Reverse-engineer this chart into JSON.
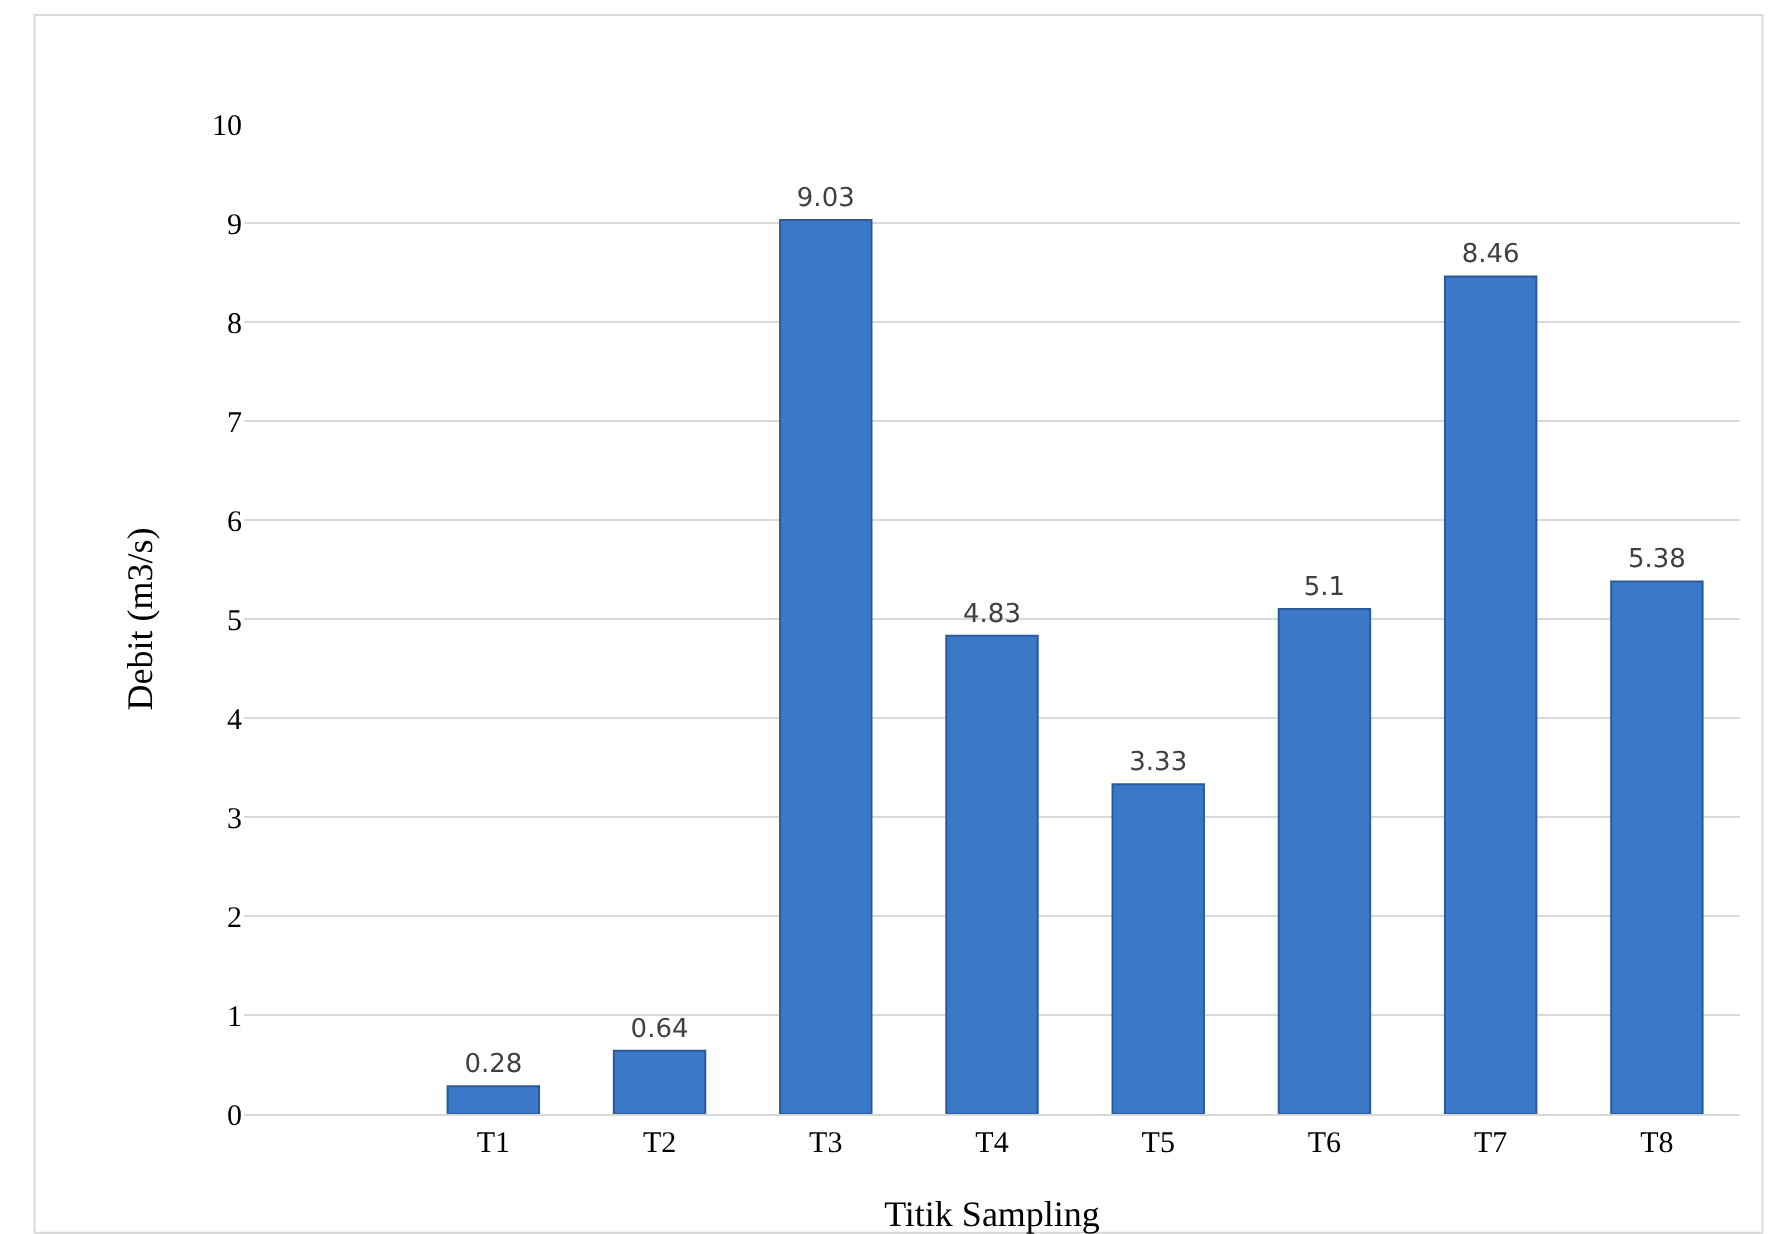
{
  "chart_data": {
    "type": "bar",
    "xlabel": "Titik Sampling",
    "ylabel": "Debit (m3/s)",
    "categories": [
      null,
      "T1",
      "T2",
      "T3",
      "T4",
      "T5",
      "T6",
      "T7",
      "T8"
    ],
    "values": [
      null,
      0.28,
      0.64,
      9.03,
      4.83,
      3.33,
      5.1,
      8.46,
      5.38
    ],
    "color": "#3b78c8",
    "ylim": [
      0,
      10
    ],
    "yticks": [
      0,
      1,
      2,
      3,
      4,
      5,
      6,
      7,
      8,
      9,
      10
    ],
    "grid": "y",
    "data_labels": true
  }
}
